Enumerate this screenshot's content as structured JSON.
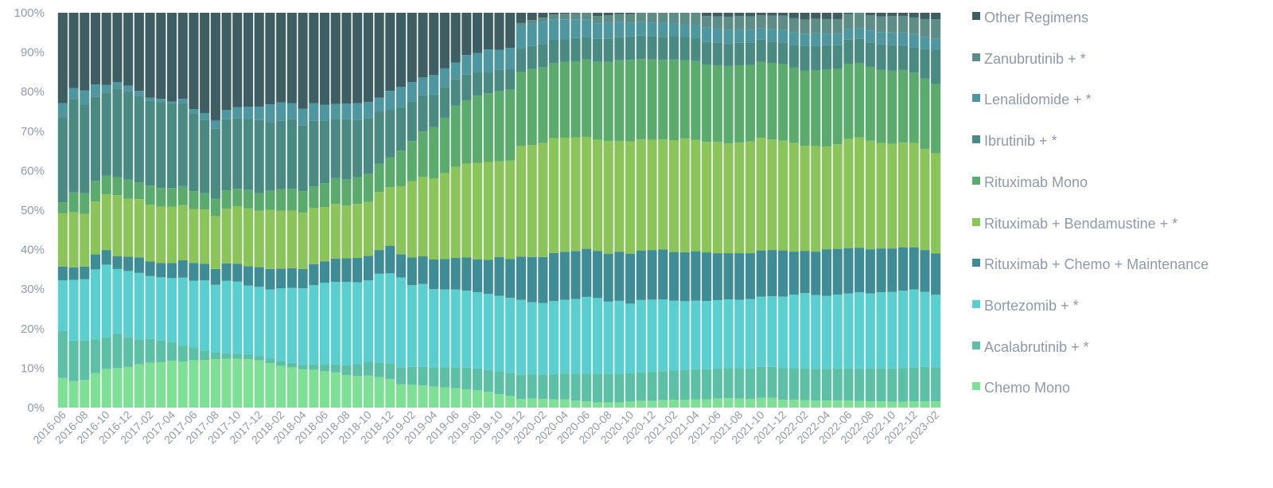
{
  "chart_data": {
    "type": "bar",
    "stacked": true,
    "ylim": [
      0,
      100
    ],
    "yticks": [
      "0%",
      "10%",
      "20%",
      "30%",
      "40%",
      "50%",
      "60%",
      "70%",
      "80%",
      "90%",
      "100%"
    ],
    "xtick_labels": [
      "2016-06",
      "2016-08",
      "2016-10",
      "2016-12",
      "2017-02",
      "2017-04",
      "2017-06",
      "2017-08",
      "2017-10",
      "2017-12",
      "2018-02",
      "2018-04",
      "2018-06",
      "2018-08",
      "2018-10",
      "2018-12",
      "2019-02",
      "2019-04",
      "2019-06",
      "2019-08",
      "2019-10",
      "2019-12",
      "2020-02",
      "2020-04",
      "2020-06",
      "2020-08",
      "2020-10",
      "2020-12",
      "2021-02",
      "2021-04",
      "2021-06",
      "2021-08",
      "2021-10",
      "2021-12",
      "2022-02",
      "2022-04",
      "2022-06",
      "2022-08",
      "2022-10",
      "2022-12",
      "2023-02"
    ],
    "categories": [
      "2016-06",
      "2016-07",
      "2016-08",
      "2016-09",
      "2016-10",
      "2016-11",
      "2016-12",
      "2017-01",
      "2017-02",
      "2017-03",
      "2017-04",
      "2017-05",
      "2017-06",
      "2017-07",
      "2017-08",
      "2017-09",
      "2017-10",
      "2017-11",
      "2017-12",
      "2018-01",
      "2018-02",
      "2018-03",
      "2018-04",
      "2018-05",
      "2018-06",
      "2018-07",
      "2018-08",
      "2018-09",
      "2018-10",
      "2018-11",
      "2018-12",
      "2019-01",
      "2019-02",
      "2019-03",
      "2019-04",
      "2019-05",
      "2019-06",
      "2019-07",
      "2019-08",
      "2019-09",
      "2019-10",
      "2019-11",
      "2019-12",
      "2020-01",
      "2020-02",
      "2020-03",
      "2020-04",
      "2020-05",
      "2020-06",
      "2020-07",
      "2020-08",
      "2020-09",
      "2020-10",
      "2020-11",
      "2020-12",
      "2021-01",
      "2021-02",
      "2021-03",
      "2021-04",
      "2021-05",
      "2021-06",
      "2021-07",
      "2021-08",
      "2021-09",
      "2021-10",
      "2021-11",
      "2021-12",
      "2022-01",
      "2022-02",
      "2022-03",
      "2022-04",
      "2022-05",
      "2022-06",
      "2022-07",
      "2022-08",
      "2022-09",
      "2022-10",
      "2022-11",
      "2022-12",
      "2023-01",
      "2023-02"
    ],
    "series": [
      {
        "name": "Chemo Mono",
        "color": "#7fdf96",
        "values": [
          7.5,
          6.7,
          7.0,
          8.7,
          9.8,
          10.0,
          10.3,
          11.0,
          11.4,
          11.5,
          11.9,
          11.7,
          12.0,
          12.1,
          12.3,
          12.4,
          12.4,
          12.3,
          12.0,
          11.3,
          10.6,
          10.2,
          9.7,
          9.6,
          9.2,
          8.9,
          8.2,
          8.0,
          8.1,
          7.7,
          7.2,
          5.9,
          5.8,
          5.6,
          5.3,
          5.1,
          4.9,
          4.6,
          4.4,
          4.0,
          3.4,
          3.0,
          2.1,
          2.2,
          2.1,
          2.0,
          2.0,
          1.7,
          1.5,
          1.3,
          1.3,
          1.3,
          1.5,
          1.7,
          1.7,
          1.9,
          2.0,
          2.0,
          2.1,
          2.1,
          2.3,
          2.4,
          2.3,
          2.2,
          2.5,
          2.5,
          2.0,
          2.0,
          1.9,
          1.8,
          1.8,
          1.8,
          1.8,
          1.7,
          1.6,
          1.6,
          1.5,
          1.5,
          1.6,
          1.6,
          1.6
        ]
      },
      {
        "name": "Acalabrutinib + *",
        "color": "#5cbfa6",
        "values": [
          12.0,
          10.3,
          10.0,
          8.6,
          8.0,
          8.8,
          7.5,
          6.3,
          6.0,
          5.5,
          4.7,
          4.0,
          3.3,
          2.3,
          1.6,
          1.3,
          1.2,
          1.1,
          1.1,
          1.1,
          1.1,
          1.1,
          1.1,
          1.3,
          1.7,
          2.0,
          2.5,
          3.0,
          3.5,
          3.6,
          4.0,
          4.3,
          4.5,
          4.7,
          4.9,
          5.1,
          5.3,
          5.5,
          5.5,
          5.6,
          5.8,
          5.8,
          5.9,
          5.9,
          5.9,
          6.1,
          6.3,
          6.5,
          6.8,
          7.0,
          7.0,
          7.0,
          7.0,
          7.0,
          7.1,
          7.2,
          7.3,
          7.4,
          7.5,
          7.6,
          7.6,
          7.6,
          7.7,
          7.7,
          7.8,
          7.8,
          8.0,
          8.0,
          8.0,
          8.0,
          8.0,
          8.1,
          8.1,
          8.2,
          8.3,
          8.3,
          8.4,
          8.5,
          8.6,
          8.7,
          8.8
        ]
      },
      {
        "name": "Bortezomib + *",
        "color": "#5bcfcf",
        "values": [
          12.7,
          15.4,
          15.5,
          17.7,
          18.4,
          16.3,
          16.8,
          16.8,
          15.9,
          16.0,
          16.2,
          17.2,
          16.8,
          17.8,
          17.2,
          18.4,
          18.3,
          17.5,
          17.5,
          17.5,
          18.5,
          19.0,
          19.4,
          20.1,
          20.7,
          20.9,
          21.1,
          20.7,
          20.6,
          22.6,
          22.8,
          22.7,
          20.7,
          21.0,
          19.8,
          19.7,
          19.7,
          19.5,
          19.3,
          19.2,
          19.1,
          19.0,
          18.2,
          17.5,
          17.4,
          17.8,
          17.9,
          18.4,
          18.9,
          18.9,
          18.0,
          18.2,
          17.3,
          18.0,
          18.0,
          17.9,
          17.5,
          17.3,
          17.2,
          17.3,
          17.3,
          17.4,
          17.3,
          17.6,
          17.8,
          17.9,
          18.1,
          18.6,
          19.1,
          18.7,
          18.5,
          18.7,
          19.0,
          19.3,
          19.0,
          19.3,
          19.4,
          19.6,
          19.7,
          19.0,
          18.6
        ]
      },
      {
        "name": "Rituximab + Chemo + Maintenance",
        "color": "#3f8c96",
        "values": [
          3.5,
          3.2,
          3.2,
          3.8,
          3.7,
          3.2,
          3.6,
          3.9,
          3.7,
          3.6,
          3.8,
          4.4,
          4.5,
          4.2,
          4.0,
          4.4,
          4.5,
          4.9,
          5.0,
          5.2,
          5.0,
          5.0,
          4.9,
          5.3,
          5.4,
          5.9,
          6.0,
          6.2,
          6.2,
          6.0,
          7.0,
          5.9,
          7.0,
          7.0,
          7.5,
          7.7,
          8.0,
          8.4,
          8.3,
          8.6,
          9.8,
          9.8,
          10.5,
          11.0,
          11.2,
          11.7,
          11.7,
          11.8,
          11.8,
          11.7,
          11.9,
          12.2,
          12.4,
          12.3,
          12.3,
          12.5,
          12.2,
          12.3,
          12.4,
          12.3,
          11.9,
          11.7,
          11.8,
          11.6,
          11.7,
          11.7,
          11.7,
          10.9,
          10.7,
          11.0,
          11.8,
          11.6,
          11.5,
          11.3,
          11.2,
          11.1,
          11.0,
          11.0,
          10.7,
          10.6,
          10.6
        ]
      },
      {
        "name": "Rituximab + Bendamustine + *",
        "color": "#8cc45c",
        "values": [
          13.5,
          14.0,
          13.4,
          13.4,
          14.1,
          15.5,
          14.7,
          14.8,
          14.4,
          14.3,
          14.3,
          14.0,
          13.7,
          13.8,
          13.4,
          13.9,
          14.6,
          14.7,
          14.3,
          15.0,
          14.7,
          14.6,
          14.3,
          14.3,
          13.8,
          13.9,
          13.4,
          13.7,
          13.7,
          14.7,
          14.8,
          17.2,
          19.3,
          20.1,
          20.5,
          21.8,
          23.1,
          23.8,
          24.5,
          24.8,
          24.3,
          25.0,
          26.9,
          27.2,
          27.7,
          27.9,
          27.7,
          27.8,
          27.5,
          27.6,
          28.0,
          27.5,
          27.9,
          27.6,
          27.4,
          27.5,
          28.0,
          28.5,
          27.9,
          28.0,
          28.2,
          27.8,
          28.0,
          28.3,
          28.5,
          28.0,
          27.8,
          27.5,
          26.6,
          26.7,
          26.0,
          26.5,
          27.6,
          27.9,
          27.5,
          26.7,
          26.5,
          26.5,
          26.4,
          25.6,
          25.8
        ]
      },
      {
        "name": "Rituximab Mono",
        "color": "#5bab6e",
        "values": [
          2.8,
          5.0,
          5.2,
          5.2,
          4.7,
          4.5,
          4.8,
          4.2,
          4.8,
          4.7,
          4.7,
          4.8,
          4.5,
          4.1,
          4.4,
          4.6,
          4.4,
          4.6,
          4.5,
          4.8,
          5.4,
          5.5,
          5.4,
          5.4,
          6.0,
          6.5,
          6.6,
          6.7,
          7.1,
          7.2,
          7.6,
          9.0,
          10.2,
          11.5,
          13.0,
          14.0,
          15.5,
          16.0,
          17.0,
          17.4,
          17.7,
          17.9,
          18.0,
          18.5,
          18.4,
          18.3,
          18.5,
          18.7,
          19.0,
          19.3,
          19.6,
          20.0,
          20.2,
          19.9,
          19.9,
          19.9,
          20.3,
          19.7,
          19.8,
          19.6,
          19.4,
          19.6,
          19.6,
          19.4,
          19.3,
          19.4,
          19.4,
          19.1,
          19.0,
          19.2,
          19.5,
          19.1,
          19.1,
          18.9,
          18.7,
          18.5,
          18.5,
          18.4,
          17.8,
          17.8,
          17.8
        ]
      },
      {
        "name": "Ibrutinib + *",
        "color": "#4a8a83",
        "values": [
          21.5,
          23.7,
          22.5,
          21.3,
          21.1,
          22.5,
          22.5,
          22.0,
          21.5,
          21.8,
          21.4,
          21.0,
          19.6,
          18.5,
          17.8,
          18.0,
          17.8,
          18.0,
          18.5,
          17.4,
          17.3,
          17.6,
          16.7,
          16.6,
          15.9,
          15.0,
          15.2,
          14.5,
          14.0,
          13.1,
          12.0,
          11.0,
          10.0,
          9.2,
          8.3,
          7.8,
          6.6,
          6.5,
          6.0,
          5.4,
          5.4,
          5.3,
          5.7,
          5.6,
          5.7,
          5.7,
          5.5,
          5.7,
          5.6,
          5.7,
          5.7,
          5.7,
          5.8,
          5.8,
          5.8,
          5.8,
          5.9,
          5.8,
          5.7,
          5.8,
          5.8,
          5.7,
          5.7,
          5.7,
          5.6,
          5.4,
          5.5,
          5.8,
          6.3,
          6.2,
          6.2,
          6.0,
          6.1,
          6.2,
          6.2,
          6.5,
          6.5,
          6.3,
          6.5,
          7.5,
          8.8
        ]
      },
      {
        "name": "Lenalidomide + *",
        "color": "#4e97a1",
        "values": [
          3.6,
          2.8,
          3.5,
          3.1,
          1.9,
          1.6,
          1.3,
          1.2,
          0.8,
          0.8,
          0.5,
          1.1,
          1.2,
          1.8,
          2.0,
          2.4,
          2.9,
          3.1,
          3.4,
          4.5,
          4.7,
          4.1,
          4.2,
          4.5,
          4.0,
          3.8,
          4.0,
          4.3,
          4.2,
          3.6,
          4.8,
          5.1,
          4.9,
          4.5,
          4.9,
          4.7,
          4.3,
          5.0,
          4.8,
          5.7,
          5.1,
          5.3,
          5.6,
          5.5,
          5.4,
          4.9,
          4.8,
          4.6,
          4.2,
          3.9,
          4.0,
          3.8,
          3.4,
          3.4,
          3.4,
          3.5,
          3.2,
          3.3,
          3.4,
          3.5,
          3.4,
          3.5,
          3.3,
          3.1,
          2.8,
          3.1,
          3.2,
          3.1,
          3.1,
          3.2,
          2.9,
          2.8,
          2.7,
          2.6,
          3.0,
          3.1,
          3.3,
          3.2,
          3.3,
          3.0,
          2.8
        ]
      },
      {
        "name": "Zanubrutinib + *",
        "color": "#5e8c87",
        "values": [
          0,
          0,
          0,
          0,
          0,
          0,
          0,
          0,
          0,
          0,
          0,
          0,
          0,
          0,
          0,
          0,
          0,
          0,
          0,
          0,
          0,
          0,
          0,
          0,
          0,
          0,
          0,
          0,
          0,
          0,
          0,
          0,
          0,
          0,
          0,
          0,
          0,
          0,
          0,
          0,
          0,
          0,
          0.6,
          0.8,
          1.0,
          1.2,
          1.4,
          1.5,
          1.7,
          1.8,
          1.9,
          2.0,
          2.2,
          2.3,
          2.4,
          2.5,
          2.6,
          2.8,
          3.0,
          3.0,
          3.2,
          3.3,
          3.5,
          3.5,
          3.4,
          3.5,
          3.6,
          3.6,
          3.6,
          3.7,
          3.7,
          3.8,
          3.8,
          3.9,
          3.9,
          4.0,
          4.1,
          4.2,
          4.2,
          4.6,
          5.0
        ]
      },
      {
        "name": "Other Regimens",
        "color": "#3f5e63",
        "values": [
          22.9,
          19.1,
          19.7,
          18.2,
          18.3,
          17.6,
          18.5,
          19.8,
          21.5,
          21.8,
          22.5,
          21.8,
          24.4,
          25.4,
          27.3,
          24.6,
          23.9,
          23.8,
          23.8,
          23.2,
          22.7,
          22.9,
          24.3,
          22.9,
          23.3,
          23.1,
          23.0,
          22.9,
          22.6,
          21.5,
          19.8,
          18.8,
          17.6,
          16.4,
          15.8,
          14.1,
          12.6,
          10.7,
          10.2,
          9.3,
          9.4,
          8.9,
          2.5,
          1.8,
          1.2,
          0.4,
          0.2,
          0.1,
          0.0,
          0.8,
          0.6,
          0.3,
          0.3,
          0.0,
          0.0,
          0.0,
          0.0,
          0.0,
          0.0,
          0.8,
          0.9,
          1.0,
          0.8,
          0.9,
          0.6,
          0.7,
          0.7,
          1.4,
          1.7,
          1.5,
          1.6,
          1.6,
          0.3,
          0.0,
          0.6,
          0.9,
          0.8,
          0.8,
          1.2,
          1.6,
          1.7
        ]
      }
    ]
  },
  "legend": {
    "items": [
      {
        "label": "Other Regimens",
        "color": "#3f5e63"
      },
      {
        "label": "Zanubrutinib + *",
        "color": "#5e8c87"
      },
      {
        "label": "Lenalidomide + *",
        "color": "#4e97a1"
      },
      {
        "label": "Ibrutinib + *",
        "color": "#4a8a83"
      },
      {
        "label": "Rituximab Mono",
        "color": "#5bab6e"
      },
      {
        "label": "Rituximab + Bendamustine + *",
        "color": "#8cc45c"
      },
      {
        "label": "Rituximab + Chemo + Maintenance",
        "color": "#3f8c96"
      },
      {
        "label": "Bortezomib + *",
        "color": "#5bcfcf"
      },
      {
        "label": "Acalabrutinib + *",
        "color": "#5cbfa6"
      },
      {
        "label": "Chemo Mono",
        "color": "#7fdf96"
      }
    ]
  }
}
